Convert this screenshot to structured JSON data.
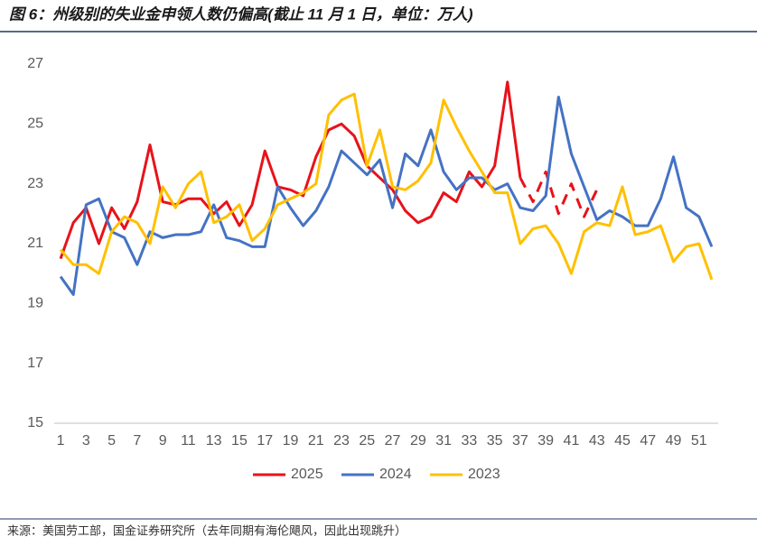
{
  "chart_data": {
    "type": "line",
    "title": "图 6：州级别的失业金申领人数仍偏高(截止 11 月 1 日，单位：万人)",
    "source": "来源：美国劳工部，国金证券研究所（去年同期有海伦飓风，因此出现跳升）",
    "x": [
      1,
      2,
      3,
      4,
      5,
      6,
      7,
      8,
      9,
      10,
      11,
      12,
      13,
      14,
      15,
      16,
      17,
      18,
      19,
      20,
      21,
      22,
      23,
      24,
      25,
      26,
      27,
      28,
      29,
      30,
      31,
      32,
      33,
      34,
      35,
      36,
      37,
      38,
      39,
      40,
      41,
      42,
      43,
      44,
      45,
      46,
      47,
      48,
      49,
      50,
      51,
      52
    ],
    "xlim": [
      0.5,
      52.5
    ],
    "xticks": [
      1,
      3,
      5,
      7,
      9,
      11,
      13,
      15,
      17,
      19,
      21,
      23,
      25,
      27,
      29,
      31,
      33,
      35,
      37,
      39,
      41,
      43,
      45,
      47,
      49,
      51
    ],
    "ylim": [
      15,
      27
    ],
    "yticks": [
      15,
      17,
      19,
      21,
      23,
      25,
      27
    ],
    "grid": false,
    "legend": "bottom",
    "series": [
      {
        "name": "2025",
        "color": "#e8121a",
        "dashed_from": 37,
        "values": [
          20.5,
          21.7,
          22.2,
          21.0,
          22.2,
          21.5,
          22.4,
          24.3,
          22.4,
          22.3,
          22.5,
          22.5,
          22.0,
          22.4,
          21.6,
          22.3,
          24.1,
          22.9,
          22.8,
          22.6,
          23.9,
          24.8,
          25.0,
          24.6,
          23.6,
          23.2,
          22.8,
          22.1,
          21.7,
          21.9,
          22.7,
          22.4,
          23.4,
          22.9,
          23.6,
          26.4,
          23.2,
          22.4,
          23.4,
          22.0,
          23.0,
          21.9,
          22.8,
          null,
          null,
          null,
          null,
          null,
          null,
          null,
          null,
          null
        ]
      },
      {
        "name": "2024",
        "color": "#4472c4",
        "values": [
          19.9,
          19.3,
          22.3,
          22.5,
          21.4,
          21.2,
          20.3,
          21.4,
          21.2,
          21.3,
          21.3,
          21.4,
          22.3,
          21.2,
          21.1,
          20.9,
          20.9,
          22.9,
          22.2,
          21.6,
          22.1,
          22.9,
          24.1,
          23.7,
          23.3,
          23.8,
          22.2,
          24.0,
          23.6,
          24.8,
          23.4,
          22.8,
          23.2,
          23.2,
          22.8,
          23.0,
          22.2,
          22.1,
          22.6,
          25.9,
          24.0,
          22.9,
          21.8,
          22.1,
          21.9,
          21.6,
          21.6,
          22.5,
          23.9,
          22.2,
          21.9,
          20.9
        ]
      },
      {
        "name": "2023",
        "color": "#ffc000",
        "values": [
          20.8,
          20.3,
          20.3,
          20.0,
          21.4,
          21.9,
          21.7,
          21.0,
          22.9,
          22.2,
          23.0,
          23.4,
          21.7,
          21.9,
          22.3,
          21.1,
          21.5,
          22.3,
          22.5,
          22.7,
          23.0,
          25.3,
          25.8,
          26.0,
          23.6,
          24.8,
          22.9,
          22.8,
          23.1,
          23.7,
          25.8,
          24.9,
          24.1,
          23.4,
          22.7,
          22.7,
          21.0,
          21.5,
          21.6,
          21.0,
          20.0,
          21.4,
          21.7,
          21.6,
          22.9,
          21.3,
          21.4,
          21.6,
          20.4,
          20.9,
          21.0,
          19.8
        ]
      }
    ]
  }
}
